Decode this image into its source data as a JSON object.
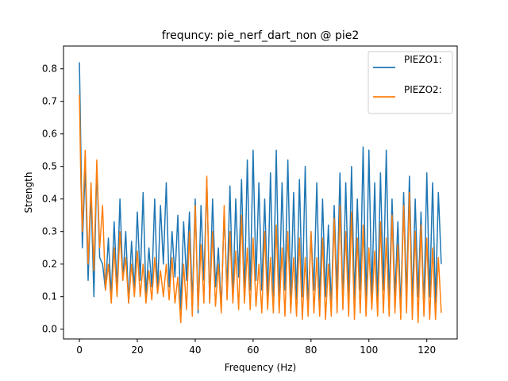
{
  "chart_data": {
    "type": "line",
    "title": "frequncy: pie_nerf_dart_non @ pie2",
    "xlabel": "Frequency (Hz)",
    "ylabel": "Strength",
    "xlim": [
      -5.5,
      130.5
    ],
    "ylim": [
      -0.03,
      0.87
    ],
    "xticks": [
      0,
      20,
      40,
      60,
      80,
      100,
      120
    ],
    "yticks": [
      0.0,
      0.1,
      0.2,
      0.3,
      0.4,
      0.5,
      0.6,
      0.7,
      0.8
    ],
    "xtick_labels": [
      "0",
      "20",
      "40",
      "60",
      "80",
      "100",
      "120"
    ],
    "ytick_labels": [
      "0.0",
      "0.1",
      "0.2",
      "0.3",
      "0.4",
      "0.5",
      "0.6",
      "0.7",
      "0.8"
    ],
    "grid": false,
    "legend": {
      "position": "top-right"
    },
    "series": [
      {
        "name": "PIEZO1:",
        "color": "#1f77b4",
        "x": [
          0,
          0.5,
          1,
          2,
          3,
          4,
          5,
          6,
          7,
          8,
          9,
          10,
          11,
          12,
          13,
          14,
          15,
          16,
          17,
          18,
          19,
          20,
          21,
          22,
          23,
          24,
          25,
          26,
          27,
          28,
          29,
          30,
          31,
          32,
          33,
          34,
          35,
          36,
          37,
          38,
          39,
          40,
          41,
          42,
          43,
          44,
          45,
          46,
          47,
          48,
          49,
          50,
          51,
          52,
          53,
          54,
          55,
          56,
          57,
          58,
          59,
          60,
          61,
          62,
          63,
          64,
          65,
          66,
          67,
          68,
          69,
          70,
          71,
          72,
          73,
          74,
          75,
          76,
          77,
          78,
          79,
          80,
          81,
          82,
          83,
          84,
          85,
          86,
          87,
          88,
          89,
          90,
          91,
          92,
          93,
          94,
          95,
          96,
          97,
          98,
          99,
          100,
          101,
          102,
          103,
          104,
          105,
          106,
          107,
          108,
          109,
          110,
          111,
          112,
          113,
          114,
          115,
          116,
          117,
          118,
          119,
          120,
          121,
          122,
          123,
          124,
          125
        ],
        "y": [
          0.82,
          0.55,
          0.25,
          0.5,
          0.15,
          0.42,
          0.1,
          0.5,
          0.22,
          0.2,
          0.12,
          0.28,
          0.1,
          0.33,
          0.12,
          0.4,
          0.15,
          0.3,
          0.08,
          0.27,
          0.12,
          0.36,
          0.15,
          0.42,
          0.1,
          0.25,
          0.13,
          0.4,
          0.11,
          0.38,
          0.2,
          0.45,
          0.13,
          0.3,
          0.16,
          0.35,
          0.06,
          0.33,
          0.15,
          0.36,
          0.08,
          0.4,
          0.05,
          0.38,
          0.15,
          0.46,
          0.08,
          0.4,
          0.13,
          0.25,
          0.06,
          0.36,
          0.12,
          0.44,
          0.09,
          0.4,
          0.16,
          0.46,
          0.1,
          0.52,
          0.12,
          0.55,
          0.15,
          0.45,
          0.12,
          0.4,
          0.1,
          0.48,
          0.1,
          0.55,
          0.08,
          0.45,
          0.12,
          0.52,
          0.1,
          0.42,
          0.09,
          0.46,
          0.1,
          0.5,
          0.06,
          0.3,
          0.12,
          0.45,
          0.08,
          0.4,
          0.1,
          0.32,
          0.07,
          0.38,
          0.12,
          0.48,
          0.08,
          0.45,
          0.1,
          0.5,
          0.09,
          0.4,
          0.12,
          0.56,
          0.07,
          0.55,
          0.1,
          0.45,
          0.08,
          0.48,
          0.12,
          0.55,
          0.09,
          0.4,
          0.1,
          0.33,
          0.06,
          0.42,
          0.1,
          0.47,
          0.08,
          0.4,
          0.1,
          0.36,
          0.07,
          0.48,
          0.1,
          0.45,
          0.08,
          0.42,
          0.2
        ]
      },
      {
        "name": "PIEZO2:",
        "color": "#ff7f0e",
        "x": [
          0,
          0.5,
          1,
          2,
          3,
          4,
          5,
          6,
          7,
          8,
          9,
          10,
          11,
          12,
          13,
          14,
          15,
          16,
          17,
          18,
          19,
          20,
          21,
          22,
          23,
          24,
          25,
          26,
          27,
          28,
          29,
          30,
          31,
          32,
          33,
          34,
          35,
          36,
          37,
          38,
          39,
          40,
          41,
          42,
          43,
          44,
          45,
          46,
          47,
          48,
          49,
          50,
          51,
          52,
          53,
          54,
          55,
          56,
          57,
          58,
          59,
          60,
          61,
          62,
          63,
          64,
          65,
          66,
          67,
          68,
          69,
          70,
          71,
          72,
          73,
          74,
          75,
          76,
          77,
          78,
          79,
          80,
          81,
          82,
          83,
          84,
          85,
          86,
          87,
          88,
          89,
          90,
          91,
          92,
          93,
          94,
          95,
          96,
          97,
          98,
          99,
          100,
          101,
          102,
          103,
          104,
          105,
          106,
          107,
          108,
          109,
          110,
          111,
          112,
          113,
          114,
          115,
          116,
          117,
          118,
          119,
          120,
          121,
          122,
          123,
          124,
          125
        ],
        "y": [
          0.72,
          0.45,
          0.3,
          0.55,
          0.2,
          0.45,
          0.18,
          0.52,
          0.25,
          0.38,
          0.12,
          0.2,
          0.08,
          0.25,
          0.1,
          0.3,
          0.15,
          0.22,
          0.08,
          0.2,
          0.1,
          0.24,
          0.1,
          0.2,
          0.08,
          0.18,
          0.09,
          0.22,
          0.11,
          0.18,
          0.1,
          0.2,
          0.09,
          0.22,
          0.08,
          0.16,
          0.02,
          0.2,
          0.06,
          0.3,
          0.04,
          0.38,
          0.06,
          0.26,
          0.08,
          0.47,
          0.08,
          0.3,
          0.07,
          0.2,
          0.05,
          0.38,
          0.09,
          0.3,
          0.08,
          0.24,
          0.06,
          0.35,
          0.08,
          0.25,
          0.06,
          0.28,
          0.07,
          0.2,
          0.05,
          0.3,
          0.06,
          0.22,
          0.05,
          0.32,
          0.05,
          0.25,
          0.04,
          0.3,
          0.05,
          0.22,
          0.04,
          0.28,
          0.03,
          0.22,
          0.04,
          0.3,
          0.05,
          0.22,
          0.04,
          0.28,
          0.03,
          0.2,
          0.04,
          0.34,
          0.05,
          0.38,
          0.06,
          0.3,
          0.04,
          0.36,
          0.03,
          0.28,
          0.05,
          0.32,
          0.04,
          0.25,
          0.06,
          0.24,
          0.04,
          0.33,
          0.05,
          0.28,
          0.04,
          0.35,
          0.05,
          0.26,
          0.03,
          0.38,
          0.05,
          0.42,
          0.03,
          0.3,
          0.02,
          0.32,
          0.04,
          0.28,
          0.03,
          0.25,
          0.03,
          0.22,
          0.05
        ]
      }
    ]
  }
}
